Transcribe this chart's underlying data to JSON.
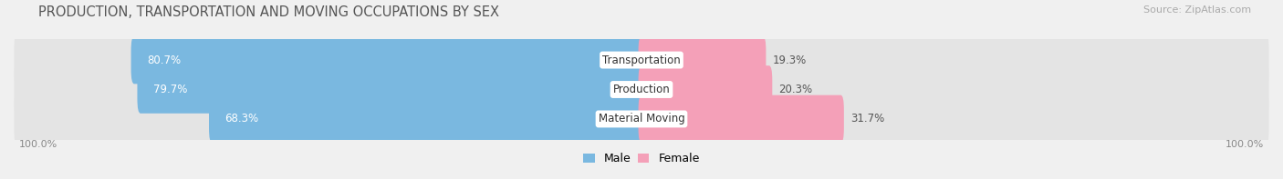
{
  "title": "PRODUCTION, TRANSPORTATION AND MOVING OCCUPATIONS BY SEX",
  "source": "Source: ZipAtlas.com",
  "categories": [
    "Transportation",
    "Production",
    "Material Moving"
  ],
  "male_pct": [
    80.7,
    79.7,
    68.3
  ],
  "female_pct": [
    19.3,
    20.3,
    31.7
  ],
  "male_color": "#7ab8e0",
  "female_color": "#f4a0b8",
  "bg_color": "#f0f0f0",
  "bar_bg_color": "#e4e4e4",
  "title_fontsize": 10.5,
  "label_fontsize": 8.5,
  "axis_label_fontsize": 8,
  "legend_fontsize": 9,
  "source_fontsize": 8
}
